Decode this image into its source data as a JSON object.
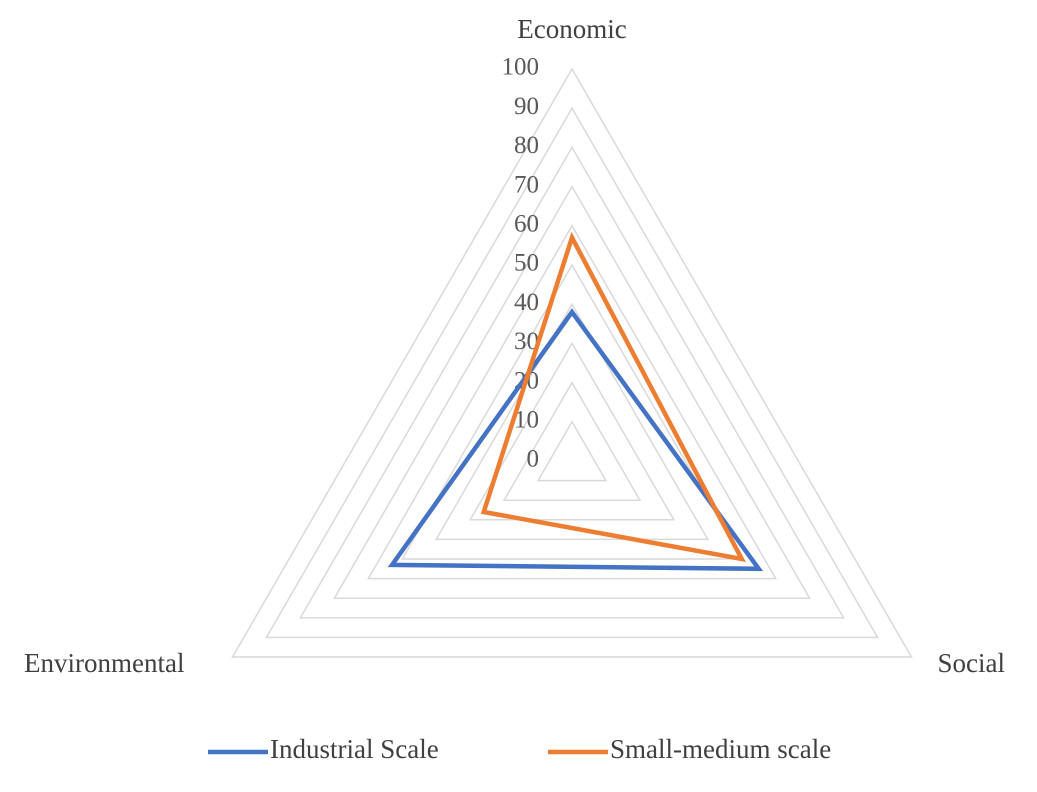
{
  "chart_data": {
    "type": "radar",
    "categories": [
      "Economic",
      "Social",
      "Environmental"
    ],
    "series": [
      {
        "name": "Industrial Scale",
        "color": "#4472c4",
        "values": [
          38,
          55,
          53
        ]
      },
      {
        "name": "Small-medium scale",
        "color": "#ed7d31",
        "values": [
          57,
          50,
          26
        ]
      }
    ],
    "ylim": [
      0,
      100
    ],
    "yticks": [
      0,
      10,
      20,
      30,
      40,
      50,
      60,
      70,
      80,
      90,
      100
    ],
    "grid": true,
    "legend": "bottom"
  }
}
